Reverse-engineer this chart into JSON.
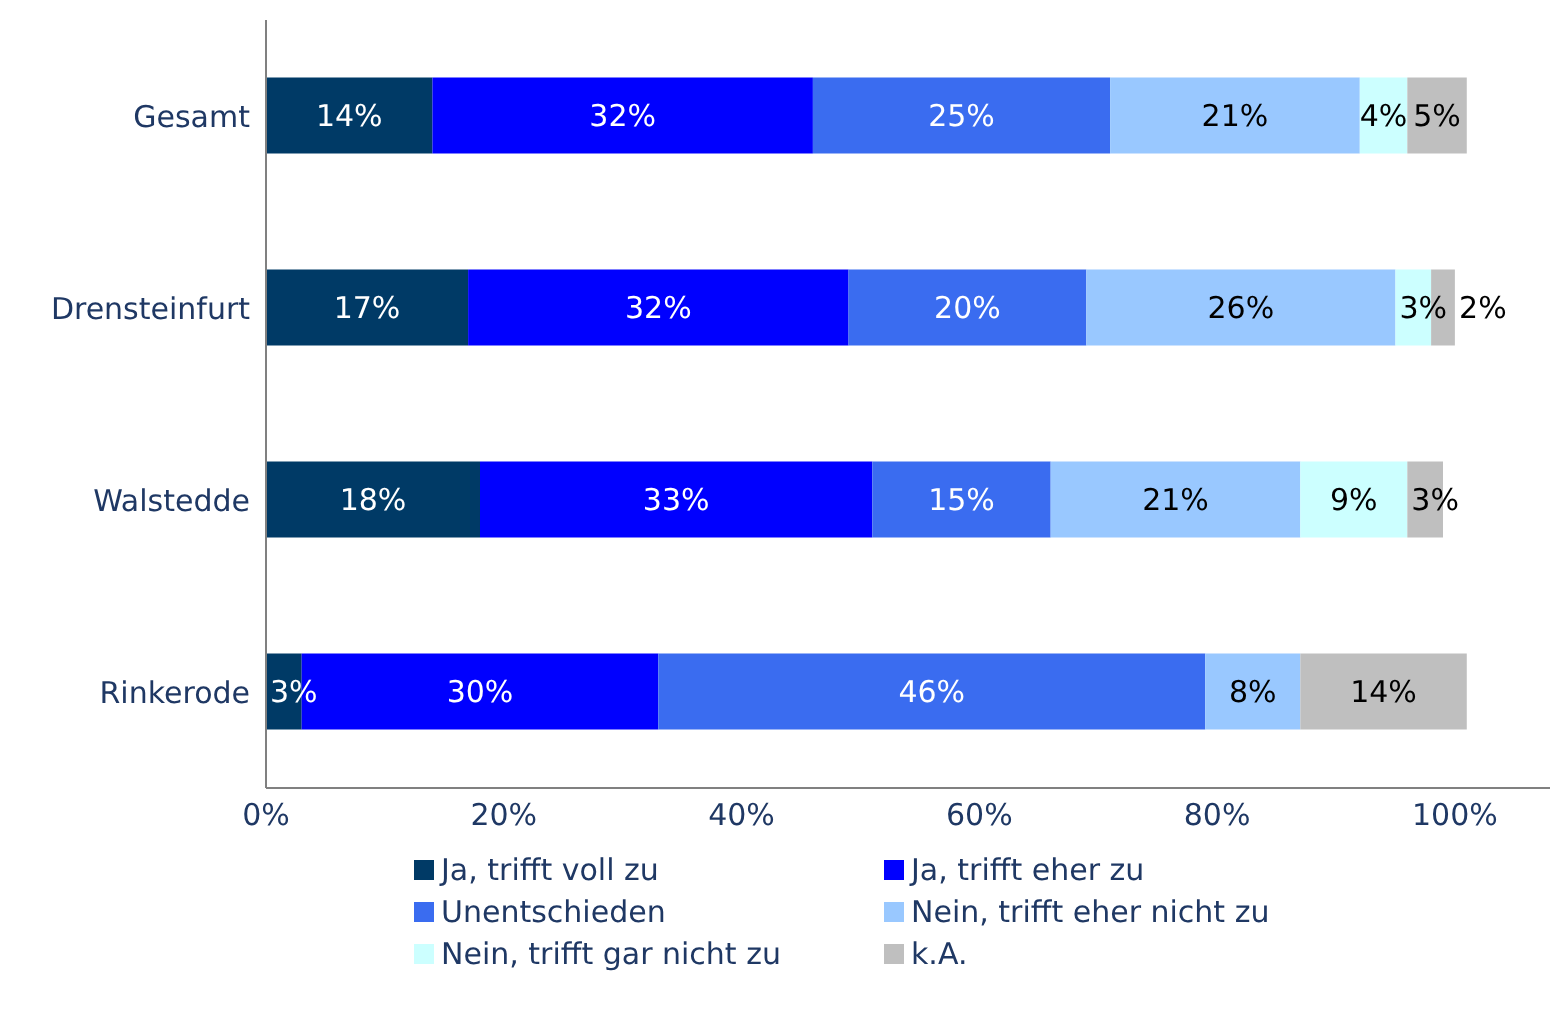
{
  "chart_data": {
    "type": "bar",
    "orientation": "horizontal",
    "stacked": true,
    "categories": [
      "Gesamt",
      "Drensteinfurt",
      "Walstedde",
      "Rinkerode"
    ],
    "series": [
      {
        "name": "Ja, trifft voll zu",
        "color": "#003a66",
        "values": [
          14,
          17,
          18,
          3
        ],
        "value_labels": [
          "14%",
          "17%",
          "18%",
          "3%"
        ]
      },
      {
        "name": "Ja, trifft eher zu",
        "color": "#0000ff",
        "values": [
          32,
          32,
          33,
          30
        ],
        "value_labels": [
          "32%",
          "32%",
          "33%",
          "30%"
        ]
      },
      {
        "name": "Unentschieden",
        "color": "#3a6cf0",
        "values": [
          25,
          20,
          15,
          46
        ],
        "value_labels": [
          "25%",
          "20%",
          "15%",
          "46%"
        ]
      },
      {
        "name": "Nein, trifft eher nicht zu",
        "color": "#99c8ff",
        "values": [
          21,
          26,
          21,
          8
        ],
        "value_labels": [
          "21%",
          "26%",
          "21%",
          "8%"
        ]
      },
      {
        "name": "Nein, trifft gar nicht zu",
        "color": "#ccffff",
        "values": [
          4,
          3,
          9,
          null
        ],
        "value_labels": [
          "4%",
          "3%",
          "9%",
          null
        ]
      },
      {
        "name": "k.A.",
        "color": "#bfbfbf",
        "values": [
          5,
          2,
          3,
          14
        ],
        "value_labels": [
          "5%",
          "2%",
          "3%",
          "14%"
        ]
      }
    ],
    "xlim": [
      0,
      108
    ],
    "xticks": [
      {
        "value": 0,
        "label": "0%"
      },
      {
        "value": 20,
        "label": "20%"
      },
      {
        "value": 40,
        "label": "40%"
      },
      {
        "value": 60,
        "label": "60%"
      },
      {
        "value": 80,
        "label": "80%"
      },
      {
        "value": 100,
        "label": "100%"
      }
    ],
    "grid": false,
    "legend": "bottom"
  }
}
